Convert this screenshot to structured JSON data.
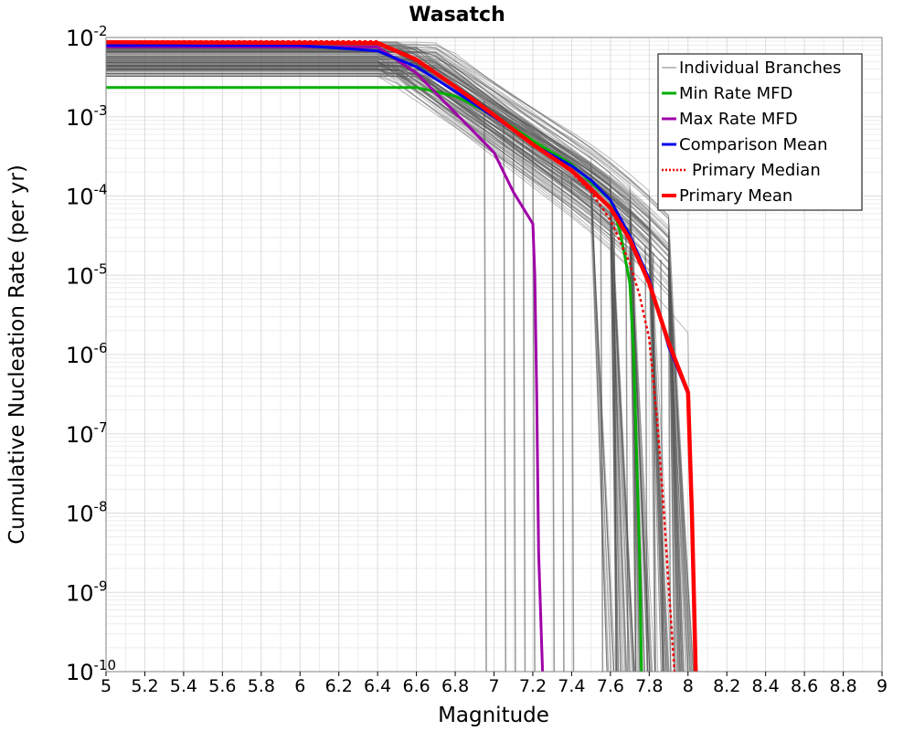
{
  "chart_data": {
    "type": "line",
    "title": "Wasatch",
    "xlabel": "Magnitude",
    "ylabel": "Cumulative Nucleation Rate (per yr)",
    "xlim": [
      5,
      9
    ],
    "ylim_log10": [
      -10,
      -2
    ],
    "y_scale": "log",
    "grid": true,
    "legend_position": "top-right",
    "x_ticks": [
      "5",
      "5.2",
      "5.4",
      "5.6",
      "5.8",
      "6",
      "6.2",
      "6.4",
      "6.6",
      "6.8",
      "7",
      "7.2",
      "7.4",
      "7.6",
      "7.8",
      "8",
      "8.2",
      "8.4",
      "8.6",
      "8.8",
      "9"
    ],
    "y_ticks": [
      {
        "base": "10",
        "exp": "-2"
      },
      {
        "base": "10",
        "exp": "-3"
      },
      {
        "base": "10",
        "exp": "-4"
      },
      {
        "base": "10",
        "exp": "-5"
      },
      {
        "base": "10",
        "exp": "-6"
      },
      {
        "base": "10",
        "exp": "-7"
      },
      {
        "base": "10",
        "exp": "-8"
      },
      {
        "base": "10",
        "exp": "-9"
      },
      {
        "base": "10",
        "exp": "-10"
      }
    ],
    "legend": [
      {
        "name": "Individual Branches",
        "color": "#7f7f7f",
        "style": "thin"
      },
      {
        "name": "Min Rate MFD",
        "color": "#00b000",
        "style": "solid"
      },
      {
        "name": "Max Rate MFD",
        "color": "#a000a8",
        "style": "solid"
      },
      {
        "name": "Comparison Mean",
        "color": "#0000ee",
        "style": "solid"
      },
      {
        "name": "Primary Median",
        "color": "#ee0000",
        "style": "dotted"
      },
      {
        "name": "Primary Mean",
        "color": "#ff0000",
        "style": "thick"
      }
    ],
    "series": [
      {
        "name": "Min Rate MFD",
        "color": "#00b000",
        "width": 3,
        "x": [
          5.0,
          6.6,
          6.8,
          7.0,
          7.2,
          7.4,
          7.6,
          7.65,
          7.7,
          7.72,
          7.75,
          7.76
        ],
        "log10_y": [
          -2.63,
          -2.63,
          -2.74,
          -2.98,
          -3.3,
          -3.6,
          -4.05,
          -4.45,
          -5.1,
          -6.0,
          -8.5,
          -10.0
        ]
      },
      {
        "name": "Max Rate MFD",
        "color": "#a000a8",
        "width": 3,
        "x": [
          5.0,
          6.4,
          6.6,
          6.8,
          7.0,
          7.1,
          7.2,
          7.21,
          7.22,
          7.23,
          7.25
        ],
        "log10_y": [
          -2.12,
          -2.12,
          -2.45,
          -2.95,
          -3.45,
          -3.95,
          -4.35,
          -5.0,
          -6.5,
          -8.5,
          -10.0
        ]
      },
      {
        "name": "Comparison Mean",
        "color": "#0000ee",
        "width": 3,
        "x": [
          5.0,
          6.0,
          6.4,
          6.6,
          6.8,
          7.0,
          7.2,
          7.4,
          7.5,
          7.6,
          7.7,
          7.8,
          7.9,
          8.0
        ],
        "log10_y": [
          -2.1,
          -2.1,
          -2.17,
          -2.37,
          -2.68,
          -3.0,
          -3.35,
          -3.62,
          -3.8,
          -4.05,
          -4.5,
          -5.05,
          -5.9,
          -6.5
        ]
      },
      {
        "name": "Primary Median",
        "color": "#ee0000",
        "width": 2.5,
        "dash": "3,3",
        "x": [
          5.0,
          6.4,
          6.6,
          6.8,
          7.0,
          7.2,
          7.4,
          7.5,
          7.6,
          7.7,
          7.75,
          7.8,
          7.84,
          7.87,
          7.9,
          7.93
        ],
        "log10_y": [
          -2.05,
          -2.05,
          -2.3,
          -2.62,
          -2.97,
          -3.35,
          -3.7,
          -3.95,
          -4.3,
          -4.85,
          -5.25,
          -5.8,
          -6.8,
          -7.8,
          -8.9,
          -10.0
        ]
      },
      {
        "name": "Primary Mean",
        "color": "#ff0000",
        "width": 4.5,
        "x": [
          5.0,
          6.4,
          6.6,
          6.8,
          7.0,
          7.2,
          7.4,
          7.6,
          7.7,
          7.8,
          7.9,
          8.0,
          8.02,
          8.04
        ],
        "log10_y": [
          -2.06,
          -2.07,
          -2.28,
          -2.62,
          -2.98,
          -3.35,
          -3.68,
          -4.15,
          -4.55,
          -5.1,
          -5.85,
          -6.48,
          -8.0,
          -10.0
        ]
      }
    ]
  }
}
